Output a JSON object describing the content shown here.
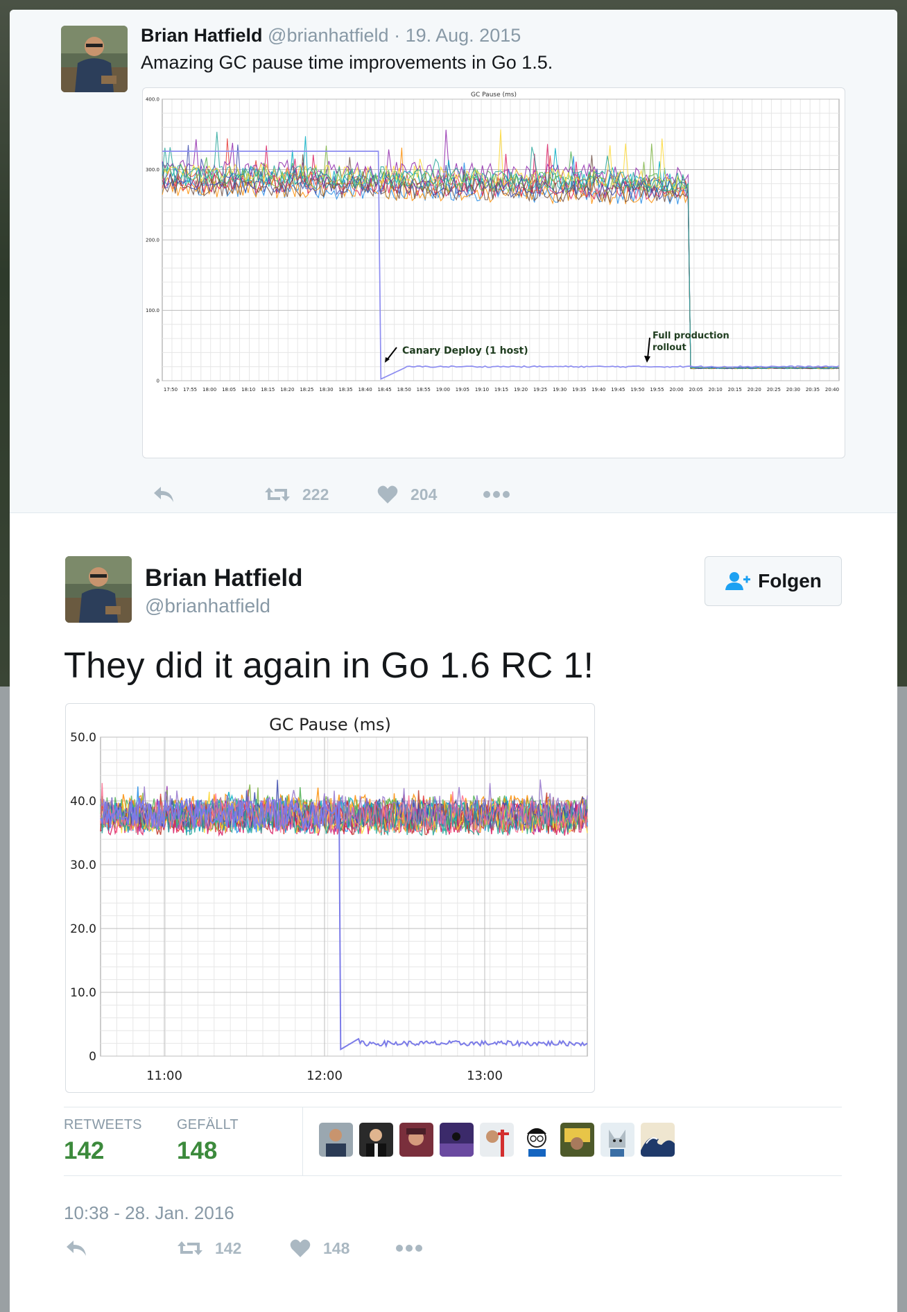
{
  "parent_tweet": {
    "author_name": "Brian Hatfield",
    "handle": "@brianhatfield",
    "date": "19. Aug. 2015",
    "text": "Amazing GC pause time improvements in Go 1.5.",
    "retweets": "222",
    "likes": "204",
    "chart": {
      "title": "GC Pause (ms)",
      "annotation_canary": "Canary Deploy (1 host)",
      "annotation_rollout_1": "Full production",
      "annotation_rollout_2": "rollout"
    }
  },
  "main_tweet": {
    "author_name": "Brian Hatfield",
    "handle": "@brianhatfield",
    "follow_label": "Folgen",
    "text": "They did it again in Go 1.6 RC 1!",
    "chart": {
      "title": "GC Pause (ms)"
    },
    "stats": {
      "retweets_label": "RETWEETS",
      "retweets_value": "142",
      "likes_label": "GEFÄLLT",
      "likes_value": "148"
    },
    "liker_avatars": [
      "avatar-1",
      "avatar-2",
      "avatar-3",
      "avatar-4",
      "avatar-5",
      "avatar-6",
      "avatar-7",
      "avatar-8",
      "avatar-9"
    ],
    "timestamp": "10:38 - 28. Jan. 2016",
    "retweets": "142",
    "likes": "148"
  },
  "chart_data": [
    {
      "type": "line",
      "title": "GC Pause (ms)",
      "ylim": [
        0,
        400
      ],
      "yticks": [
        "0",
        "100.0",
        "200.0",
        "300.0",
        "400.0"
      ],
      "xticks": [
        "17:50",
        "17:55",
        "18:00",
        "18:05",
        "18:10",
        "18:15",
        "18:20",
        "18:25",
        "18:30",
        "18:35",
        "18:40",
        "18:45",
        "18:50",
        "18:55",
        "19:00",
        "19:05",
        "19:10",
        "19:15",
        "19:20",
        "19:25",
        "19:30",
        "19:35",
        "19:40",
        "19:45",
        "19:50",
        "19:55",
        "20:00",
        "20:05",
        "20:10",
        "20:15",
        "20:20",
        "20:25",
        "20:30",
        "20:35",
        "20:40"
      ],
      "grid": true,
      "series_count": 12,
      "baseline_before_ms": 290,
      "baseline_after_ms": 18,
      "canary_drop_at": "18:50",
      "rollout_drop_at": "20:05",
      "canary_level_ms": 20,
      "colors": [
        "#4caf50",
        "#e53935",
        "#1e88e5",
        "#fb8c00",
        "#8e24aa",
        "#00acc1",
        "#d81b60",
        "#7cb342",
        "#6d4c41",
        "#fdd835",
        "#3949ab",
        "#26a69a"
      ],
      "canary_color": "#8c8cf0"
    },
    {
      "type": "line",
      "title": "GC Pause (ms)",
      "ylim": [
        0,
        50
      ],
      "yticks": [
        "0",
        "10.0",
        "20.0",
        "30.0",
        "40.0",
        "50.0"
      ],
      "xticks": [
        "11:00",
        "12:00",
        "13:00"
      ],
      "grid": true,
      "series_count": 14,
      "baseline_before_ms": 38,
      "canary_drop_at": "12:04",
      "canary_level_ms": 2,
      "colors": [
        "#4caf50",
        "#e53935",
        "#1e88e5",
        "#fb8c00",
        "#8e24aa",
        "#00acc1",
        "#d81b60",
        "#7cb342",
        "#c0392b",
        "#fdd835",
        "#3949ab",
        "#26a69a",
        "#ff6f91",
        "#9575cd"
      ],
      "canary_color": "#7b7be8"
    }
  ],
  "colors": {
    "link_gray": "#8899a6",
    "stat_green": "#3c8a3c",
    "action_gray": "#aab8c2",
    "follow_blue": "#1da1f2"
  }
}
